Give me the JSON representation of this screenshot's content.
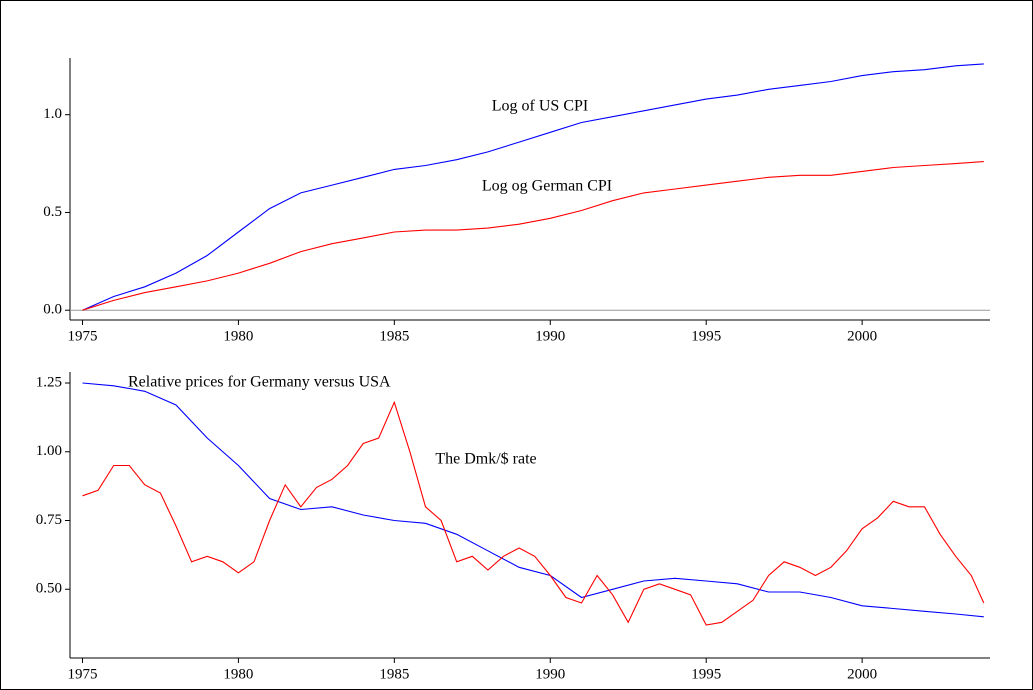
{
  "chart_data": [
    {
      "type": "line",
      "xlim": [
        1974.6,
        2004.1
      ],
      "xticks": [
        1975,
        1980,
        1985,
        1990,
        1995,
        2000
      ],
      "ylim": [
        -0.05,
        1.29
      ],
      "yticks": [
        {
          "value": 0,
          "label": "0.0"
        },
        0.5,
        {
          "value": 1,
          "label": "1.0"
        }
      ],
      "hline": 0,
      "series": [
        {
          "name": "Log of US CPI",
          "color": "#0000ff",
          "x": [
            1975,
            1976,
            1977,
            1978,
            1979,
            1980,
            1981,
            1982,
            1983,
            1984,
            1985,
            1986,
            1987,
            1988,
            1989,
            1990,
            1991,
            1992,
            1993,
            1994,
            1995,
            1996,
            1997,
            1998,
            1999,
            2000,
            2001,
            2002,
            2003,
            2003.9
          ],
          "values": [
            0,
            0.07,
            0.12,
            0.19,
            0.28,
            0.4,
            0.52,
            0.6,
            0.64,
            0.68,
            0.72,
            0.74,
            0.77,
            0.81,
            0.86,
            0.91,
            0.96,
            0.99,
            1.02,
            1.05,
            1.08,
            1.1,
            1.13,
            1.15,
            1.17,
            1.2,
            1.22,
            1.23,
            1.25,
            1.26
          ]
        },
        {
          "name": "Log og German CPI",
          "color": "#ff0000",
          "x": [
            1975,
            1976,
            1977,
            1978,
            1979,
            1980,
            1981,
            1982,
            1983,
            1984,
            1985,
            1986,
            1987,
            1988,
            1989,
            1990,
            1991,
            1992,
            1993,
            1994,
            1995,
            1996,
            1997,
            1998,
            1999,
            2000,
            2001,
            2002,
            2003,
            2003.9
          ],
          "values": [
            0,
            0.05,
            0.09,
            0.12,
            0.15,
            0.19,
            0.24,
            0.3,
            0.34,
            0.37,
            0.4,
            0.41,
            0.41,
            0.42,
            0.44,
            0.47,
            0.51,
            0.56,
            0.6,
            0.62,
            0.64,
            0.66,
            0.68,
            0.69,
            0.69,
            0.71,
            0.73,
            0.74,
            0.75,
            0.76
          ]
        }
      ]
    },
    {
      "type": "line",
      "xlim": [
        1974.6,
        2004.1
      ],
      "xticks": [
        1975,
        1980,
        1985,
        1990,
        1995,
        2000
      ],
      "ylim": [
        0.25,
        1.29
      ],
      "yticks": [
        {
          "value": 0.5,
          "label": "0.50"
        },
        0.75,
        {
          "value": 1,
          "label": "1.00"
        },
        1.25
      ],
      "series": [
        {
          "name": "Relative prices for Germany versus USA",
          "color": "#0000ff",
          "x": [
            1975,
            1976,
            1976.5,
            1977,
            1978,
            1979,
            1980,
            1981,
            1982,
            1983,
            1984,
            1985,
            1986,
            1987,
            1988,
            1989,
            1990,
            1991,
            1992,
            1993,
            1994,
            1995,
            1996,
            1997,
            1998,
            1999,
            2000,
            2001,
            2002,
            2003,
            2003.9
          ],
          "values": [
            1.25,
            1.24,
            1.23,
            1.22,
            1.17,
            1.05,
            0.95,
            0.83,
            0.79,
            0.8,
            0.77,
            0.75,
            0.74,
            0.7,
            0.64,
            0.58,
            0.55,
            0.47,
            0.5,
            0.53,
            0.54,
            0.53,
            0.52,
            0.49,
            0.49,
            0.47,
            0.44,
            0.43,
            0.42,
            0.41,
            0.4
          ]
        },
        {
          "name": "The Dmk/$ rate",
          "color": "#ff0000",
          "x": [
            1975,
            1975.5,
            1976,
            1976.5,
            1977,
            1977.5,
            1978,
            1978.5,
            1979,
            1979.5,
            1980,
            1980.5,
            1981,
            1981.5,
            1982,
            1982.5,
            1983,
            1983.5,
            1984,
            1984.5,
            1985,
            1985.5,
            1986,
            1986.5,
            1987,
            1987.5,
            1988,
            1988.5,
            1989,
            1989.5,
            1990,
            1990.5,
            1991,
            1991.5,
            1992,
            1992.5,
            1993,
            1993.5,
            1994,
            1994.5,
            1995,
            1995.5,
            1996,
            1996.5,
            1997,
            1997.5,
            1998,
            1998.5,
            1999,
            1999.5,
            2000,
            2000.5,
            2001,
            2001.5,
            2002,
            2002.5,
            2003,
            2003.5,
            2003.9
          ],
          "values": [
            0.84,
            0.86,
            0.95,
            0.95,
            0.88,
            0.85,
            0.73,
            0.6,
            0.62,
            0.6,
            0.56,
            0.6,
            0.75,
            0.88,
            0.8,
            0.87,
            0.9,
            0.95,
            1.03,
            1.05,
            1.18,
            1.0,
            0.8,
            0.75,
            0.6,
            0.62,
            0.57,
            0.62,
            0.65,
            0.62,
            0.55,
            0.47,
            0.45,
            0.55,
            0.48,
            0.38,
            0.5,
            0.52,
            0.5,
            0.48,
            0.37,
            0.38,
            0.42,
            0.46,
            0.55,
            0.6,
            0.58,
            0.55,
            0.58,
            0.64,
            0.72,
            0.76,
            0.82,
            0.8,
            0.8,
            0.7,
            0.62,
            0.55,
            0.45
          ]
        }
      ]
    }
  ]
}
